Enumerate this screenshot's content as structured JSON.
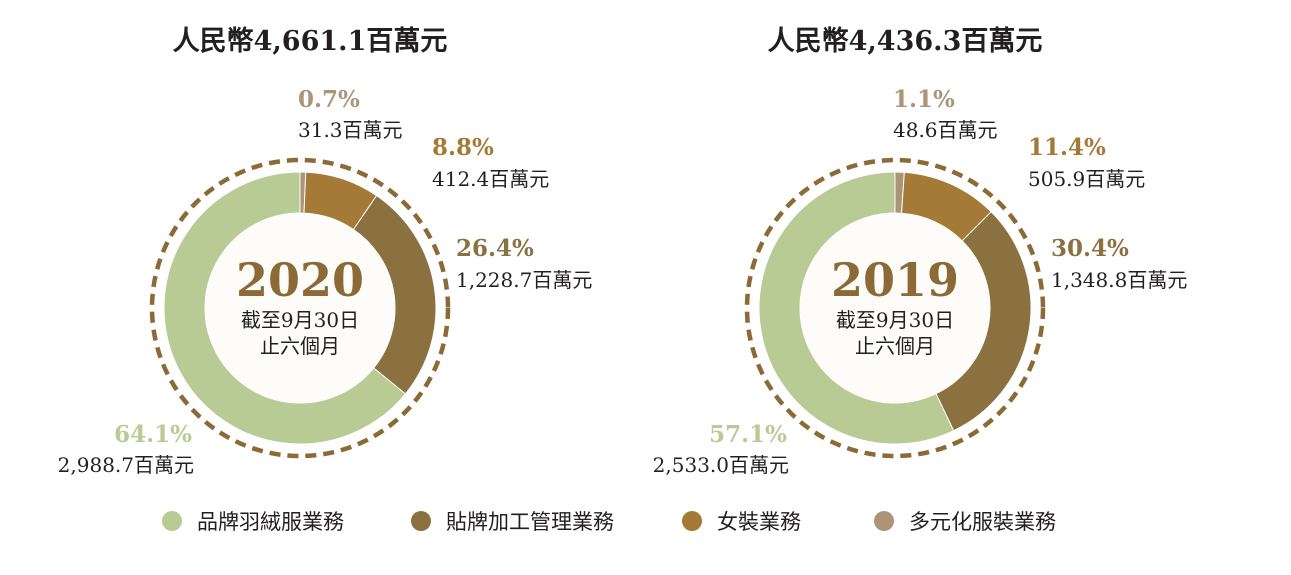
{
  "chart_data": [
    {
      "type": "pie",
      "title": "人民幣4,661.1百萬元",
      "center_year": "2020",
      "center_line1": "截至9月30日",
      "center_line2": "止六個月",
      "categories": [
        "品牌羽絨服業務",
        "貼牌加工管理業務",
        "女裝業務",
        "多元化服裝業務"
      ],
      "values": [
        2988.7,
        1228.7,
        412.4,
        31.3
      ],
      "percent_labels": [
        "64.1%",
        "26.4%",
        "8.8%",
        "0.7%"
      ],
      "amount_labels": [
        "2,988.7百萬元",
        "1,228.7百萬元",
        "412.4百萬元",
        "31.3百萬元"
      ]
    },
    {
      "type": "pie",
      "title": "人民幣4,436.3百萬元",
      "center_year": "2019",
      "center_line1": "截至9月30日",
      "center_line2": "止六個月",
      "categories": [
        "品牌羽絨服業務",
        "貼牌加工管理業務",
        "女裝業務",
        "多元化服裝業務"
      ],
      "values": [
        2533.0,
        1348.8,
        505.9,
        48.6
      ],
      "percent_labels": [
        "57.1%",
        "30.4%",
        "11.4%",
        "1.1%"
      ],
      "amount_labels": [
        "2,533.0百萬元",
        "1,348.8百萬元",
        "505.9百萬元",
        "48.6百萬元"
      ]
    }
  ],
  "colors": {
    "brand_down": "#b9cb94",
    "oem": "#8b7040",
    "ladies": "#a47a36",
    "diversified": "#ab9576",
    "dashed_ring": "#8b6a35",
    "center_fill": "#fdfcf8",
    "year_text": "#8b6a35"
  },
  "legend": [
    {
      "label": "品牌羽絨服業務",
      "color": "#b9cb94"
    },
    {
      "label": "貼牌加工管理業務",
      "color": "#8b7040"
    },
    {
      "label": "女裝業務",
      "color": "#a47a36"
    },
    {
      "label": "多元化服裝業務",
      "color": "#ab9576"
    }
  ]
}
